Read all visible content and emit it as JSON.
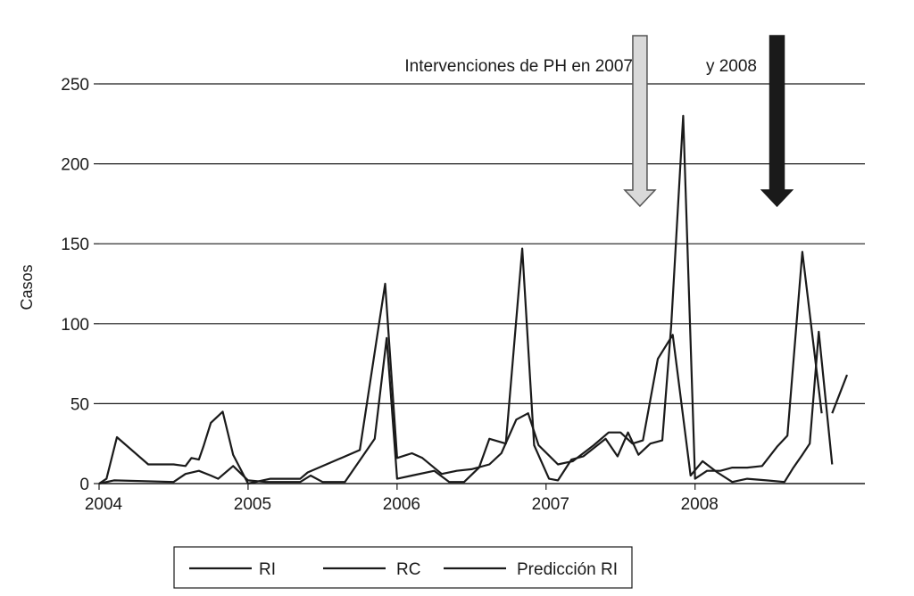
{
  "chart_data": {
    "type": "line",
    "title": "",
    "xlabel": "",
    "ylabel": "Casos",
    "ylim": [
      0,
      250
    ],
    "xlim": [
      2004,
      2009.14
    ],
    "yticks": [
      0,
      50,
      100,
      150,
      200,
      250
    ],
    "xticks": [
      2004,
      2005,
      2006,
      2007,
      2008
    ],
    "grid": "horizontal",
    "legend_position": "bottom",
    "colors": {
      "line": "#1a1a1a",
      "arrow_2007": "#d9d9d9",
      "arrow_2008": "#1a1a1a"
    },
    "annotations": [
      {
        "id": "intervention_2007",
        "text": "Intervenciones de PH en 2007",
        "x": 2007.63,
        "style": "light-arrow"
      },
      {
        "id": "intervention_2008",
        "text": "y 2008",
        "x": 2008.55,
        "style": "dark-arrow"
      }
    ],
    "series": [
      {
        "name": "RI",
        "x": [
          2004.0,
          2004.05,
          2004.12,
          2004.33,
          2004.5,
          2004.58,
          2004.62,
          2004.67,
          2004.7,
          2004.75,
          2004.83,
          2004.9,
          2005.0,
          2005.15,
          2005.35,
          2005.4,
          2005.75,
          2005.92,
          2006.0,
          2006.1,
          2006.17,
          2006.3,
          2006.4,
          2006.5,
          2006.62,
          2006.7,
          2006.8,
          2006.88,
          2006.95,
          2007.08,
          2007.18,
          2007.32,
          2007.42,
          2007.5,
          2007.58,
          2007.65,
          2007.75,
          2007.85,
          2007.97,
          2008.05,
          2008.15,
          2008.25,
          2008.35,
          2008.48,
          2008.6,
          2008.66,
          2008.72,
          2008.77,
          2008.83,
          2008.92
        ],
        "values": [
          0,
          3,
          29,
          12,
          12,
          11,
          16,
          15,
          23,
          38,
          45,
          18,
          0,
          3,
          3,
          7,
          21,
          125,
          16,
          19,
          16,
          6,
          8,
          9,
          12,
          19,
          40,
          44,
          24,
          12,
          14,
          24,
          32,
          32,
          25,
          27,
          78,
          93,
          5,
          14,
          7,
          1,
          3,
          2,
          1,
          10,
          18,
          25,
          95,
          12
        ]
      },
      {
        "name": "RC",
        "x": [
          2004.0,
          2004.1,
          2004.5,
          2004.58,
          2004.67,
          2004.75,
          2004.8,
          2004.9,
          2005.0,
          2005.12,
          2005.35,
          2005.42,
          2005.5,
          2005.65,
          2005.85,
          2005.93,
          2006.0,
          2006.1,
          2006.25,
          2006.35,
          2006.45,
          2006.55,
          2006.62,
          2006.73,
          2006.84,
          2006.92,
          2007.02,
          2007.08,
          2007.17,
          2007.25,
          2007.4,
          2007.48,
          2007.55,
          2007.62,
          2007.7,
          2007.78,
          2007.84,
          2007.92,
          2008.0,
          2008.08,
          2008.17,
          2008.25,
          2008.35,
          2008.45,
          2008.55,
          2008.62,
          2008.72,
          2008.85
        ],
        "values": [
          0,
          2,
          1,
          6,
          8,
          5,
          3,
          11,
          2,
          1,
          1,
          5,
          1,
          1,
          28,
          91,
          3,
          5,
          8,
          1,
          1,
          10,
          28,
          25,
          147,
          24,
          3,
          2,
          15,
          17,
          28,
          17,
          32,
          18,
          25,
          27,
          99,
          230,
          3,
          8,
          8,
          10,
          10,
          11,
          23,
          30,
          145,
          44
        ]
      },
      {
        "name": "Predicción RI",
        "x": [
          2008.92,
          2009.02
        ],
        "values": [
          44,
          68
        ]
      }
    ]
  }
}
